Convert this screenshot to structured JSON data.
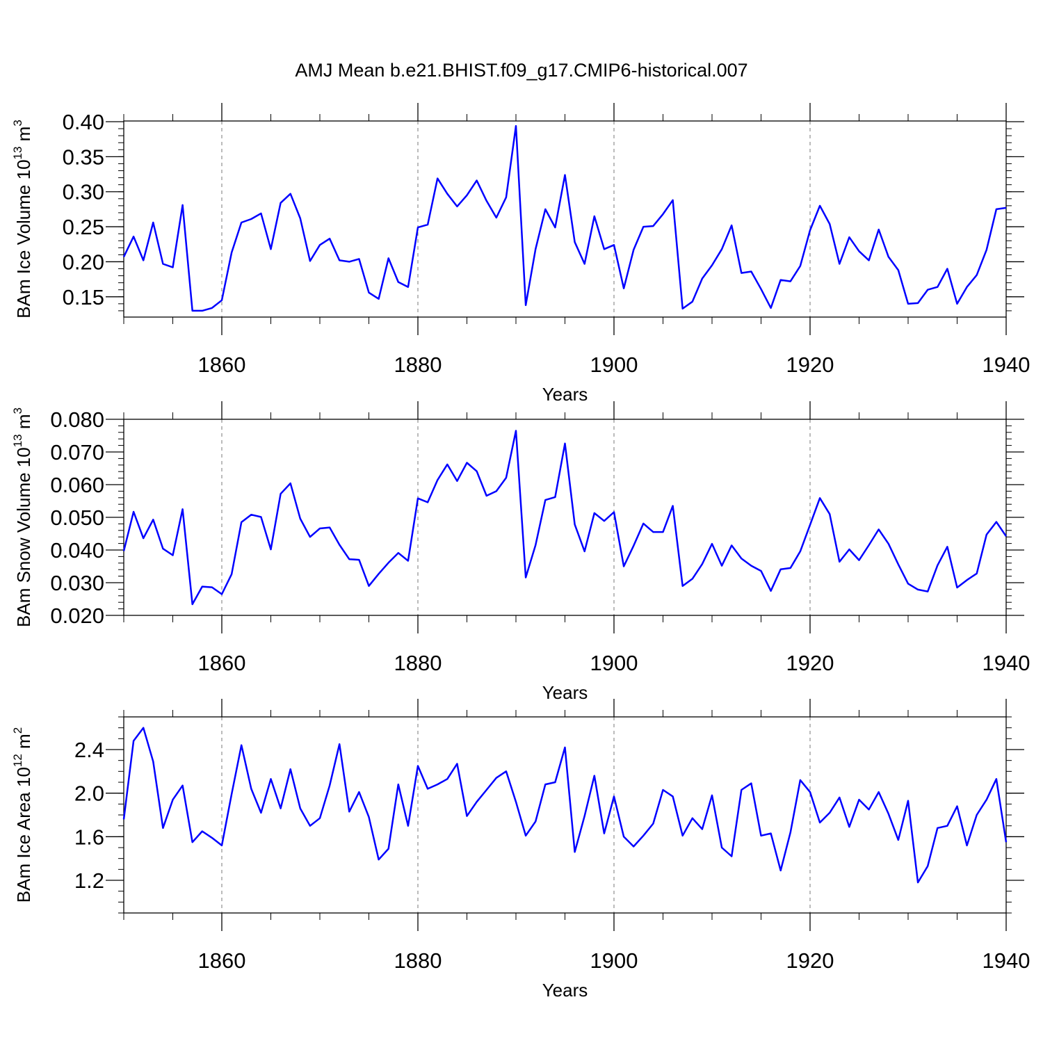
{
  "chart_data": {
    "title": "AMJ Mean b.e21.BHIST.f09_g17.CMIP6-historical.007",
    "series_color": "#0000ff",
    "panels": [
      {
        "type": "line",
        "ylabel": "BAm Ice Volume 10",
        "yexp": "13",
        "yunit": "m",
        "yunitexp": "3",
        "xlabel": "Years",
        "xlim": [
          1850,
          1940
        ],
        "ylim": [
          0.121,
          0.401
        ],
        "yticks": [
          0.15,
          0.2,
          0.25,
          0.3,
          0.35,
          0.4
        ],
        "ytick_labels": [
          "0.15",
          "0.20",
          "0.25",
          "0.30",
          "0.35",
          "0.40"
        ],
        "yminor_step": 0.01,
        "xticks": [
          1860,
          1880,
          1900,
          1920,
          1940
        ],
        "xtick_labels": [
          "1860",
          "1880",
          "1900",
          "1920",
          "1940"
        ],
        "x": [
          1850,
          1851,
          1852,
          1853,
          1854,
          1855,
          1856,
          1857,
          1858,
          1859,
          1860,
          1861,
          1862,
          1863,
          1864,
          1865,
          1866,
          1867,
          1868,
          1869,
          1870,
          1871,
          1872,
          1873,
          1874,
          1875,
          1876,
          1877,
          1878,
          1879,
          1880,
          1881,
          1882,
          1883,
          1884,
          1885,
          1886,
          1887,
          1888,
          1889,
          1890,
          1891,
          1892,
          1893,
          1894,
          1895,
          1896,
          1897,
          1898,
          1899,
          1900,
          1901,
          1902,
          1903,
          1904,
          1905,
          1906,
          1907,
          1908,
          1909,
          1910,
          1911,
          1912,
          1913,
          1914,
          1915,
          1916,
          1917,
          1918,
          1919,
          1920,
          1921,
          1922,
          1923,
          1924,
          1925,
          1926,
          1927,
          1928,
          1929,
          1930,
          1931,
          1932,
          1933,
          1934,
          1935,
          1936,
          1937,
          1938,
          1939,
          1940
        ],
        "values": [
          0.207,
          0.236,
          0.202,
          0.256,
          0.197,
          0.192,
          0.281,
          0.13,
          0.13,
          0.134,
          0.145,
          0.213,
          0.256,
          0.261,
          0.269,
          0.218,
          0.284,
          0.297,
          0.262,
          0.201,
          0.224,
          0.233,
          0.202,
          0.2,
          0.204,
          0.156,
          0.147,
          0.205,
          0.171,
          0.164,
          0.249,
          0.253,
          0.319,
          0.297,
          0.279,
          0.295,
          0.316,
          0.287,
          0.263,
          0.292,
          0.394,
          0.138,
          0.218,
          0.275,
          0.249,
          0.324,
          0.228,
          0.197,
          0.265,
          0.218,
          0.224,
          0.162,
          0.217,
          0.25,
          0.251,
          0.268,
          0.288,
          0.133,
          0.143,
          0.176,
          0.195,
          0.218,
          0.252,
          0.184,
          0.186,
          0.161,
          0.134,
          0.174,
          0.172,
          0.194,
          0.245,
          0.28,
          0.254,
          0.197,
          0.235,
          0.215,
          0.202,
          0.246,
          0.207,
          0.188,
          0.14,
          0.141,
          0.16,
          0.164,
          0.19,
          0.14,
          0.164,
          0.181,
          0.217,
          0.275,
          0.277
        ]
      },
      {
        "type": "line",
        "ylabel": "BAm Snow Volume 10",
        "yexp": "13",
        "yunit": "m",
        "yunitexp": "3",
        "xlabel": "Years",
        "xlim": [
          1850,
          1940
        ],
        "ylim": [
          0.02,
          0.08
        ],
        "yticks": [
          0.02,
          0.03,
          0.04,
          0.05,
          0.06,
          0.07,
          0.08
        ],
        "ytick_labels": [
          "0.020",
          "0.030",
          "0.040",
          "0.050",
          "0.060",
          "0.070",
          "0.080"
        ],
        "yminor_step": 0.002,
        "xticks": [
          1860,
          1880,
          1900,
          1920,
          1940
        ],
        "xtick_labels": [
          "1860",
          "1880",
          "1900",
          "1920",
          "1940"
        ],
        "x": [
          1850,
          1851,
          1852,
          1853,
          1854,
          1855,
          1856,
          1857,
          1858,
          1859,
          1860,
          1861,
          1862,
          1863,
          1864,
          1865,
          1866,
          1867,
          1868,
          1869,
          1870,
          1871,
          1872,
          1873,
          1874,
          1875,
          1876,
          1877,
          1878,
          1879,
          1880,
          1881,
          1882,
          1883,
          1884,
          1885,
          1886,
          1887,
          1888,
          1889,
          1890,
          1891,
          1892,
          1893,
          1894,
          1895,
          1896,
          1897,
          1898,
          1899,
          1900,
          1901,
          1902,
          1903,
          1904,
          1905,
          1906,
          1907,
          1908,
          1909,
          1910,
          1911,
          1912,
          1913,
          1914,
          1915,
          1916,
          1917,
          1918,
          1919,
          1920,
          1921,
          1922,
          1923,
          1924,
          1925,
          1926,
          1927,
          1928,
          1929,
          1930,
          1931,
          1932,
          1933,
          1934,
          1935,
          1936,
          1937,
          1938,
          1939,
          1940
        ],
        "values": [
          0.0397,
          0.0517,
          0.0436,
          0.0493,
          0.0404,
          0.0384,
          0.0525,
          0.0234,
          0.0288,
          0.0286,
          0.0265,
          0.0326,
          0.0485,
          0.0508,
          0.0501,
          0.0402,
          0.0572,
          0.0604,
          0.0496,
          0.044,
          0.0466,
          0.0469,
          0.0416,
          0.0372,
          0.037,
          0.029,
          0.0327,
          0.0361,
          0.0391,
          0.0367,
          0.0558,
          0.0546,
          0.0614,
          0.0662,
          0.0611,
          0.0667,
          0.0641,
          0.0566,
          0.058,
          0.0621,
          0.0765,
          0.0316,
          0.0415,
          0.0553,
          0.0562,
          0.0726,
          0.0478,
          0.0396,
          0.0513,
          0.0489,
          0.0516,
          0.035,
          0.0413,
          0.0481,
          0.0455,
          0.0455,
          0.0535,
          0.029,
          0.0312,
          0.0357,
          0.0419,
          0.0352,
          0.0414,
          0.0374,
          0.0352,
          0.0336,
          0.0275,
          0.0341,
          0.0345,
          0.0396,
          0.0477,
          0.0559,
          0.051,
          0.0364,
          0.0402,
          0.0369,
          0.0415,
          0.0463,
          0.0419,
          0.0356,
          0.0297,
          0.0279,
          0.0273,
          0.0353,
          0.041,
          0.0285,
          0.0308,
          0.0328,
          0.0447,
          0.0486,
          0.0442
        ]
      },
      {
        "type": "line",
        "ylabel": "BAm Ice Area 10",
        "yexp": "12",
        "yunit": "m",
        "yunitexp": "2",
        "xlabel": "Years",
        "xlim": [
          1850,
          1940
        ],
        "ylim": [
          0.9,
          2.7
        ],
        "yticks": [
          1.2,
          1.6,
          2.0,
          2.4
        ],
        "ytick_labels": [
          "1.2",
          "1.6",
          "2.0",
          "2.4"
        ],
        "yminor_step": 0.1,
        "xticks": [
          1860,
          1880,
          1900,
          1920,
          1940
        ],
        "xtick_labels": [
          "1860",
          "1880",
          "1900",
          "1920",
          "1940"
        ],
        "x": [
          1850,
          1851,
          1852,
          1853,
          1854,
          1855,
          1856,
          1857,
          1858,
          1859,
          1860,
          1861,
          1862,
          1863,
          1864,
          1865,
          1866,
          1867,
          1868,
          1869,
          1870,
          1871,
          1872,
          1873,
          1874,
          1875,
          1876,
          1877,
          1878,
          1879,
          1880,
          1881,
          1882,
          1883,
          1884,
          1885,
          1886,
          1887,
          1888,
          1889,
          1890,
          1891,
          1892,
          1893,
          1894,
          1895,
          1896,
          1897,
          1898,
          1899,
          1900,
          1901,
          1902,
          1903,
          1904,
          1905,
          1906,
          1907,
          1908,
          1909,
          1910,
          1911,
          1912,
          1913,
          1914,
          1915,
          1916,
          1917,
          1918,
          1919,
          1920,
          1921,
          1922,
          1923,
          1924,
          1925,
          1926,
          1927,
          1928,
          1929,
          1930,
          1931,
          1932,
          1933,
          1934,
          1935,
          1936,
          1937,
          1938,
          1939,
          1940
        ],
        "values": [
          1.76,
          2.48,
          2.6,
          2.29,
          1.68,
          1.94,
          2.07,
          1.55,
          1.65,
          1.59,
          1.52,
          1.99,
          2.44,
          2.04,
          1.82,
          2.13,
          1.86,
          2.22,
          1.86,
          1.7,
          1.77,
          2.07,
          2.45,
          1.83,
          2.01,
          1.78,
          1.39,
          1.49,
          2.08,
          1.7,
          2.25,
          2.04,
          2.08,
          2.13,
          2.27,
          1.79,
          1.92,
          2.03,
          2.14,
          2.2,
          1.92,
          1.61,
          1.74,
          2.08,
          2.1,
          2.42,
          1.46,
          1.79,
          2.16,
          1.63,
          1.97,
          1.6,
          1.51,
          1.61,
          1.72,
          2.03,
          1.97,
          1.61,
          1.77,
          1.67,
          1.98,
          1.5,
          1.42,
          2.03,
          2.09,
          1.61,
          1.63,
          1.29,
          1.64,
          2.12,
          2.01,
          1.73,
          1.82,
          1.96,
          1.69,
          1.94,
          1.85,
          2.01,
          1.81,
          1.57,
          1.93,
          1.18,
          1.33,
          1.68,
          1.7,
          1.88,
          1.52,
          1.8,
          1.94,
          2.13,
          1.55
        ]
      }
    ]
  }
}
